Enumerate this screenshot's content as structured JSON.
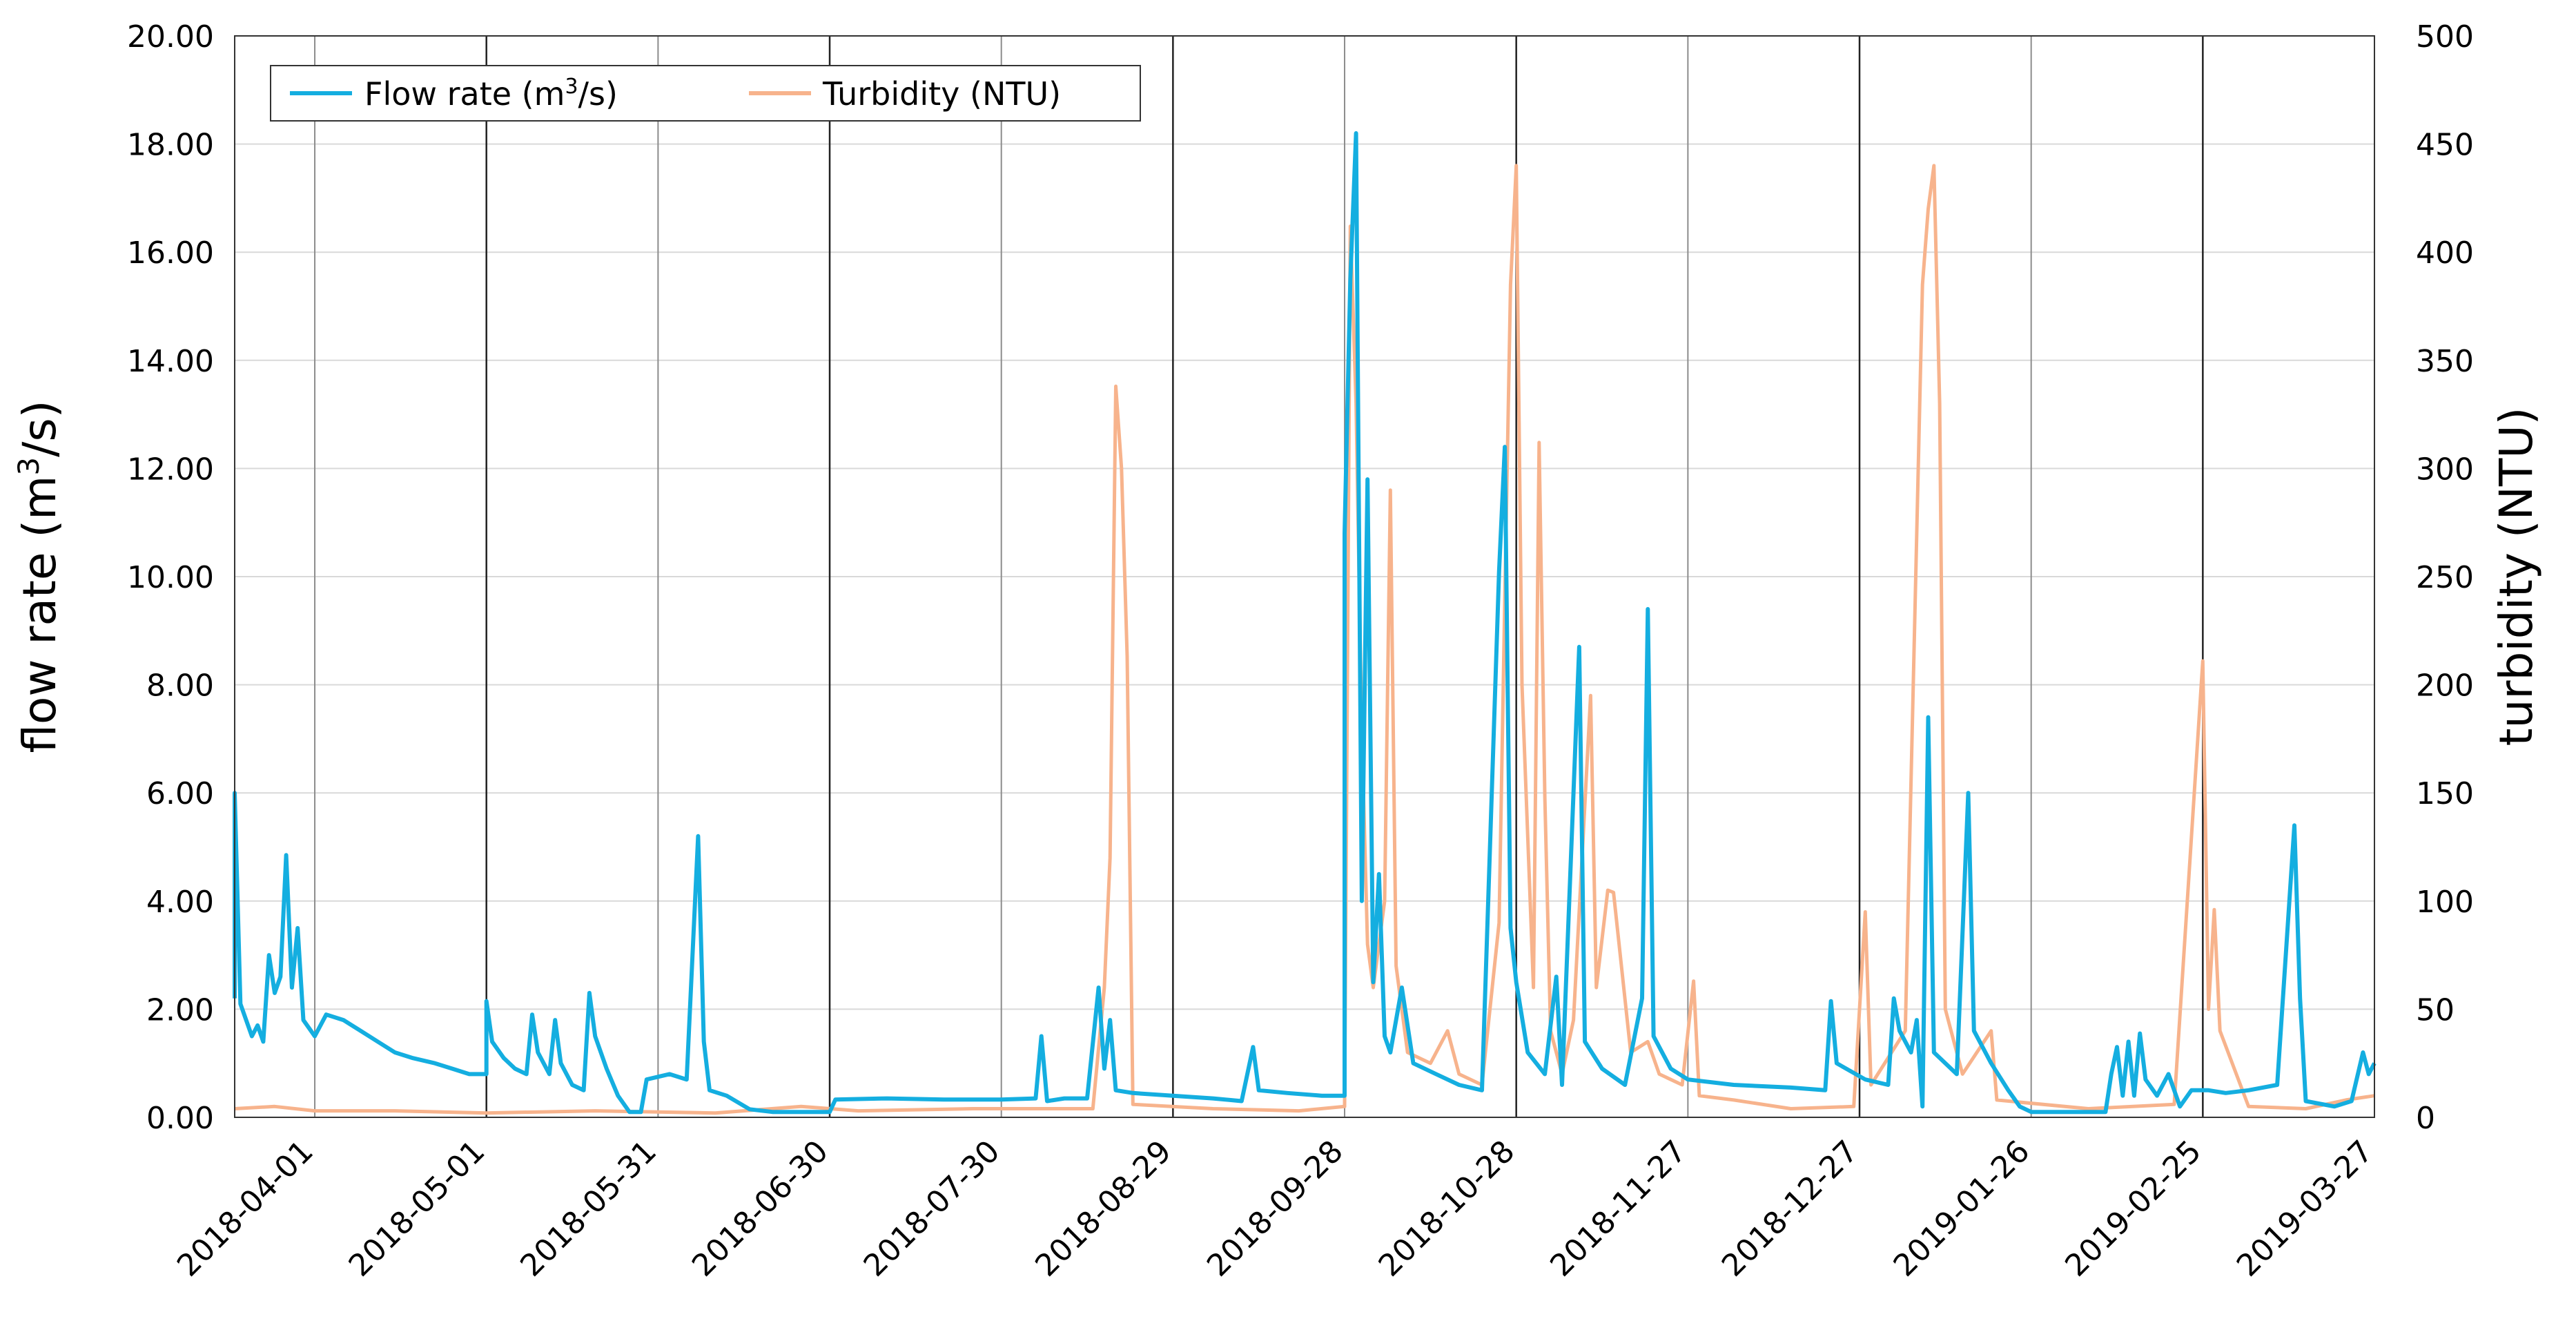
{
  "chart_data": {
    "type": "line",
    "x_type": "date",
    "xlim": [
      "2018-03-18",
      "2019-03-27"
    ],
    "x_ticks": [
      "2018-04-01",
      "2018-05-01",
      "2018-05-31",
      "2018-06-30",
      "2018-07-30",
      "2018-08-29",
      "2018-09-28",
      "2018-10-28",
      "2018-11-27",
      "2018-12-27",
      "2019-01-26",
      "2019-02-25",
      "2019-03-27"
    ],
    "major_gridlines": [
      "2018-05-01",
      "2018-06-30",
      "2018-08-29",
      "2018-10-28",
      "2018-12-27",
      "2019-02-25"
    ],
    "y_left": {
      "label_prefix": "flow rate (m",
      "label_sup": "3",
      "label_suffix": "/s)",
      "lim": [
        0,
        20
      ],
      "ticks": [
        "0.00",
        "2.00",
        "4.00",
        "6.00",
        "8.00",
        "10.00",
        "12.00",
        "14.00",
        "16.00",
        "18.00",
        "20.00"
      ]
    },
    "y_right": {
      "label": "turbidity (NTU)",
      "lim": [
        0,
        500
      ],
      "ticks": [
        "0",
        "50",
        "100",
        "150",
        "200",
        "250",
        "300",
        "350",
        "400",
        "450",
        "500"
      ]
    },
    "grid": true,
    "legend": {
      "placement": "top-left",
      "entries": [
        {
          "text_prefix": "Flow rate (m",
          "text_sup": "3",
          "text_suffix": "/s)"
        },
        {
          "text": "Turbidity (NTU)"
        }
      ]
    },
    "series": [
      {
        "name": "Flow rate (m3/s)",
        "axis": "left",
        "color": "#14aee0",
        "points": [
          [
            "2018-03-18",
            2.2
          ],
          [
            "2018-03-18",
            6.0
          ],
          [
            "2018-03-19",
            2.1
          ],
          [
            "2018-03-20",
            1.8
          ],
          [
            "2018-03-21",
            1.5
          ],
          [
            "2018-03-22",
            1.7
          ],
          [
            "2018-03-23",
            1.4
          ],
          [
            "2018-03-24",
            3.0
          ],
          [
            "2018-03-25",
            2.3
          ],
          [
            "2018-03-26",
            2.6
          ],
          [
            "2018-03-27",
            4.85
          ],
          [
            "2018-03-28",
            2.4
          ],
          [
            "2018-03-29",
            3.5
          ],
          [
            "2018-03-30",
            1.8
          ],
          [
            "2018-04-01",
            1.5
          ],
          [
            "2018-04-03",
            1.9
          ],
          [
            "2018-04-06",
            1.8
          ],
          [
            "2018-04-09",
            1.6
          ],
          [
            "2018-04-12",
            1.4
          ],
          [
            "2018-04-15",
            1.2
          ],
          [
            "2018-04-18",
            1.1
          ],
          [
            "2018-04-22",
            1.0
          ],
          [
            "2018-04-25",
            0.9
          ],
          [
            "2018-04-28",
            0.8
          ],
          [
            "2018-05-01",
            0.8
          ],
          [
            "2018-05-01",
            2.15
          ],
          [
            "2018-05-02",
            1.4
          ],
          [
            "2018-05-04",
            1.1
          ],
          [
            "2018-05-06",
            0.9
          ],
          [
            "2018-05-08",
            0.8
          ],
          [
            "2018-05-09",
            1.9
          ],
          [
            "2018-05-10",
            1.2
          ],
          [
            "2018-05-12",
            0.8
          ],
          [
            "2018-05-13",
            1.8
          ],
          [
            "2018-05-14",
            1.0
          ],
          [
            "2018-05-16",
            0.6
          ],
          [
            "2018-05-18",
            0.5
          ],
          [
            "2018-05-19",
            2.3
          ],
          [
            "2018-05-20",
            1.5
          ],
          [
            "2018-05-22",
            0.9
          ],
          [
            "2018-05-24",
            0.4
          ],
          [
            "2018-05-26",
            0.1
          ],
          [
            "2018-05-28",
            0.1
          ],
          [
            "2018-05-29",
            0.7
          ],
          [
            "2018-06-02",
            0.8
          ],
          [
            "2018-06-05",
            0.7
          ],
          [
            "2018-06-07",
            5.2
          ],
          [
            "2018-06-08",
            1.4
          ],
          [
            "2018-06-09",
            0.5
          ],
          [
            "2018-06-12",
            0.4
          ],
          [
            "2018-06-16",
            0.15
          ],
          [
            "2018-06-20",
            0.1
          ],
          [
            "2018-06-25",
            0.1
          ],
          [
            "2018-06-30",
            0.1
          ],
          [
            "2018-07-01",
            0.33
          ],
          [
            "2018-07-10",
            0.35
          ],
          [
            "2018-07-20",
            0.33
          ],
          [
            "2018-07-30",
            0.33
          ],
          [
            "2018-08-05",
            0.35
          ],
          [
            "2018-08-06",
            1.5
          ],
          [
            "2018-08-07",
            0.3
          ],
          [
            "2018-08-10",
            0.35
          ],
          [
            "2018-08-14",
            0.35
          ],
          [
            "2018-08-16",
            2.4
          ],
          [
            "2018-08-17",
            0.9
          ],
          [
            "2018-08-18",
            1.8
          ],
          [
            "2018-08-19",
            0.5
          ],
          [
            "2018-08-22",
            0.45
          ],
          [
            "2018-08-29",
            0.4
          ],
          [
            "2018-09-05",
            0.35
          ],
          [
            "2018-09-10",
            0.3
          ],
          [
            "2018-09-12",
            1.3
          ],
          [
            "2018-09-13",
            0.5
          ],
          [
            "2018-09-18",
            0.45
          ],
          [
            "2018-09-24",
            0.4
          ],
          [
            "2018-09-28",
            0.4
          ],
          [
            "2018-09-28",
            10.8
          ],
          [
            "2018-09-29",
            15.5
          ],
          [
            "2018-09-30",
            18.2
          ],
          [
            "2018-10-01",
            4.0
          ],
          [
            "2018-10-02",
            11.8
          ],
          [
            "2018-10-03",
            2.5
          ],
          [
            "2018-10-04",
            4.5
          ],
          [
            "2018-10-05",
            1.5
          ],
          [
            "2018-10-06",
            1.2
          ],
          [
            "2018-10-08",
            2.4
          ],
          [
            "2018-10-10",
            1.0
          ],
          [
            "2018-10-14",
            0.8
          ],
          [
            "2018-10-18",
            0.6
          ],
          [
            "2018-10-22",
            0.5
          ],
          [
            "2018-10-25",
            10.1
          ],
          [
            "2018-10-26",
            12.4
          ],
          [
            "2018-10-27",
            3.5
          ],
          [
            "2018-10-28",
            2.5
          ],
          [
            "2018-10-30",
            1.2
          ],
          [
            "2018-11-02",
            0.8
          ],
          [
            "2018-11-04",
            2.6
          ],
          [
            "2018-11-05",
            0.6
          ],
          [
            "2018-11-08",
            8.7
          ],
          [
            "2018-11-09",
            1.4
          ],
          [
            "2018-11-12",
            0.9
          ],
          [
            "2018-11-16",
            0.6
          ],
          [
            "2018-11-19",
            2.2
          ],
          [
            "2018-11-20",
            9.4
          ],
          [
            "2018-11-21",
            1.5
          ],
          [
            "2018-11-24",
            0.9
          ],
          [
            "2018-11-27",
            0.7
          ],
          [
            "2018-12-05",
            0.6
          ],
          [
            "2018-12-15",
            0.55
          ],
          [
            "2018-12-21",
            0.5
          ],
          [
            "2018-12-22",
            2.15
          ],
          [
            "2018-12-23",
            1.0
          ],
          [
            "2018-12-28",
            0.7
          ],
          [
            "2019-01-01",
            0.6
          ],
          [
            "2019-01-02",
            2.2
          ],
          [
            "2019-01-03",
            1.6
          ],
          [
            "2019-01-05",
            1.2
          ],
          [
            "2019-01-06",
            1.8
          ],
          [
            "2019-01-07",
            0.2
          ],
          [
            "2019-01-08",
            7.4
          ],
          [
            "2019-01-09",
            1.2
          ],
          [
            "2019-01-13",
            0.8
          ],
          [
            "2019-01-15",
            6.0
          ],
          [
            "2019-01-16",
            1.6
          ],
          [
            "2019-01-19",
            1.0
          ],
          [
            "2019-01-22",
            0.5
          ],
          [
            "2019-01-24",
            0.2
          ],
          [
            "2019-01-26",
            0.1
          ],
          [
            "2019-02-03",
            0.1
          ],
          [
            "2019-02-08",
            0.1
          ],
          [
            "2019-02-09",
            0.8
          ],
          [
            "2019-02-10",
            1.3
          ],
          [
            "2019-02-11",
            0.4
          ],
          [
            "2019-02-12",
            1.4
          ],
          [
            "2019-02-13",
            0.4
          ],
          [
            "2019-02-14",
            1.55
          ],
          [
            "2019-02-15",
            0.7
          ],
          [
            "2019-02-17",
            0.4
          ],
          [
            "2019-02-19",
            0.8
          ],
          [
            "2019-02-21",
            0.2
          ],
          [
            "2019-02-23",
            0.5
          ],
          [
            "2019-02-26",
            0.5
          ],
          [
            "2019-03-01",
            0.45
          ],
          [
            "2019-03-05",
            0.5
          ],
          [
            "2019-03-10",
            0.6
          ],
          [
            "2019-03-13",
            5.4
          ],
          [
            "2019-03-14",
            2.2
          ],
          [
            "2019-03-15",
            0.3
          ],
          [
            "2019-03-20",
            0.2
          ],
          [
            "2019-03-23",
            0.3
          ],
          [
            "2019-03-25",
            1.2
          ],
          [
            "2019-03-26",
            0.8
          ],
          [
            "2019-03-27",
            1.0
          ]
        ]
      },
      {
        "name": "Turbidity (NTU)",
        "axis": "right",
        "color": "#f7b38c",
        "points": [
          [
            "2018-03-18",
            4
          ],
          [
            "2018-03-25",
            5
          ],
          [
            "2018-04-01",
            3
          ],
          [
            "2018-04-15",
            3
          ],
          [
            "2018-05-01",
            2
          ],
          [
            "2018-05-20",
            3
          ],
          [
            "2018-06-10",
            2
          ],
          [
            "2018-06-25",
            5
          ],
          [
            "2018-07-05",
            3
          ],
          [
            "2018-07-25",
            4
          ],
          [
            "2018-08-15",
            4
          ],
          [
            "2018-08-17",
            60
          ],
          [
            "2018-08-18",
            120
          ],
          [
            "2018-08-19",
            338
          ],
          [
            "2018-08-20",
            300
          ],
          [
            "2018-08-21",
            213
          ],
          [
            "2018-08-22",
            6
          ],
          [
            "2018-09-05",
            4
          ],
          [
            "2018-09-20",
            3
          ],
          [
            "2018-09-28",
            5
          ],
          [
            "2018-09-29",
            412
          ],
          [
            "2018-09-30",
            330
          ],
          [
            "2018-10-01",
            178
          ],
          [
            "2018-10-02",
            80
          ],
          [
            "2018-10-03",
            60
          ],
          [
            "2018-10-05",
            100
          ],
          [
            "2018-10-06",
            290
          ],
          [
            "2018-10-07",
            70
          ],
          [
            "2018-10-09",
            30
          ],
          [
            "2018-10-13",
            25
          ],
          [
            "2018-10-16",
            40
          ],
          [
            "2018-10-18",
            20
          ],
          [
            "2018-10-22",
            15
          ],
          [
            "2018-10-25",
            90
          ],
          [
            "2018-10-26",
            240
          ],
          [
            "2018-10-27",
            385
          ],
          [
            "2018-10-28",
            440
          ],
          [
            "2018-10-29",
            200
          ],
          [
            "2018-10-31",
            60
          ],
          [
            "2018-11-01",
            312
          ],
          [
            "2018-11-02",
            148
          ],
          [
            "2018-11-03",
            40
          ],
          [
            "2018-11-05",
            20
          ],
          [
            "2018-11-07",
            45
          ],
          [
            "2018-11-10",
            195
          ],
          [
            "2018-11-11",
            60
          ],
          [
            "2018-11-13",
            105
          ],
          [
            "2018-11-14",
            104
          ],
          [
            "2018-11-17",
            30
          ],
          [
            "2018-11-20",
            35
          ],
          [
            "2018-11-22",
            20
          ],
          [
            "2018-11-26",
            15
          ],
          [
            "2018-11-28",
            63
          ],
          [
            "2018-11-29",
            10
          ],
          [
            "2018-12-05",
            8
          ],
          [
            "2018-12-15",
            4
          ],
          [
            "2018-12-26",
            5
          ],
          [
            "2018-12-28",
            95
          ],
          [
            "2018-12-29",
            15
          ],
          [
            "2019-01-04",
            40
          ],
          [
            "2019-01-07",
            385
          ],
          [
            "2019-01-08",
            420
          ],
          [
            "2019-01-09",
            440
          ],
          [
            "2019-01-10",
            330
          ],
          [
            "2019-01-11",
            50
          ],
          [
            "2019-01-14",
            20
          ],
          [
            "2019-01-19",
            40
          ],
          [
            "2019-01-20",
            8
          ],
          [
            "2019-02-05",
            4
          ],
          [
            "2019-02-20",
            6
          ],
          [
            "2019-02-25",
            211
          ],
          [
            "2019-02-26",
            50
          ],
          [
            "2019-02-27",
            96
          ],
          [
            "2019-02-28",
            40
          ],
          [
            "2019-03-05",
            5
          ],
          [
            "2019-03-15",
            4
          ],
          [
            "2019-03-22",
            8
          ],
          [
            "2019-03-27",
            10
          ]
        ]
      }
    ]
  }
}
